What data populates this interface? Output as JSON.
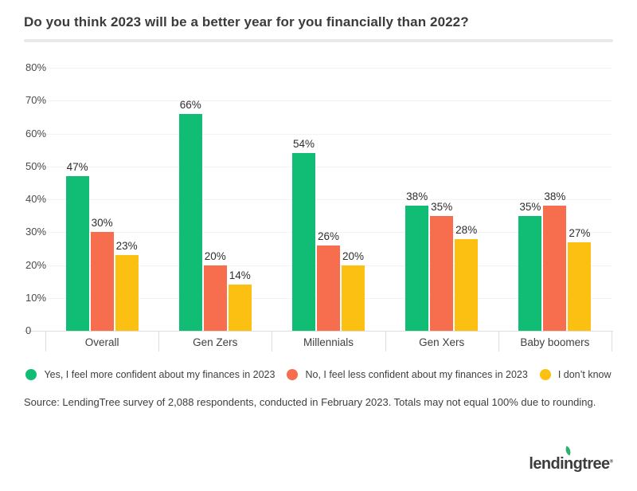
{
  "header": {
    "title": "Do you think 2023 will be a better year for you financially than 2022?"
  },
  "chart_data": {
    "type": "bar",
    "title": "Do you think 2023 will be a better year for you financially than 2022?",
    "categories": [
      "Overall",
      "Gen Zers",
      "Millennials",
      "Gen Xers",
      "Baby boomers"
    ],
    "series": [
      {
        "name": "Yes, I feel more confident about my finances in 2023",
        "color": "#11BD74",
        "values": [
          47,
          66,
          54,
          38,
          35
        ]
      },
      {
        "name": "No, I feel less confident about my finances in 2023",
        "color": "#F66E4E",
        "values": [
          30,
          20,
          26,
          35,
          38
        ]
      },
      {
        "name": "I don’t know",
        "color": "#FBC012",
        "values": [
          23,
          14,
          20,
          28,
          27
        ]
      }
    ],
    "value_suffix": "%",
    "data_labels": true,
    "grid": true,
    "legend_position": "bottom",
    "y_axis": {
      "min": 0,
      "max": 80,
      "tick_step": 10,
      "tick_labels_top_to_bottom": [
        "80%",
        "70%",
        "60%",
        "50%",
        "40%",
        "30%",
        "20%",
        "10%",
        "0"
      ]
    }
  },
  "footer": {
    "source_note": "Source: LendingTree survey of 2,088 respondents, conducted in February 2023. Totals may not equal 100% due to rounding.",
    "logo": {
      "prefix": "lendi",
      "leaf_letter": "n",
      "suffix": "gtree",
      "registered_mark": "®",
      "leaf_color": "#2CB06C",
      "text_color": "#3D3D3D"
    }
  },
  "colors": {
    "background": "#FFFFFF",
    "title_text": "#3B3B3B",
    "axis_text": "#4B4B4B",
    "grid_line": "#F3F3F3",
    "axis_line": "#DEDEDE",
    "divider": "#E9E9E9"
  }
}
